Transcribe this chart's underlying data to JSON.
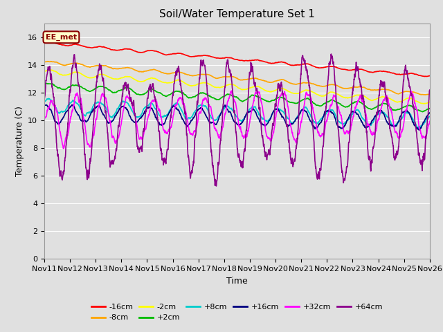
{
  "title": "Soil/Water Temperature Set 1",
  "xlabel": "Time",
  "ylabel": "Temperature (C)",
  "ylim": [
    0,
    17
  ],
  "yticks": [
    0,
    2,
    4,
    6,
    8,
    10,
    12,
    14,
    16
  ],
  "x_labels": [
    "Nov 11",
    "Nov 12",
    "Nov 13",
    "Nov 14",
    "Nov 15",
    "Nov 16",
    "Nov 17",
    "Nov 18",
    "Nov 19",
    "Nov 20",
    "Nov 21",
    "Nov 22",
    "Nov 23",
    "Nov 24",
    "Nov 25",
    "Nov 26"
  ],
  "annotation_text": "EE_met",
  "annotation_color": "#8B0000",
  "annotation_bg": "#FFFFCC",
  "series": {
    "-16cm": {
      "color": "#FF0000",
      "lw": 1.2
    },
    "-8cm": {
      "color": "#FFA500",
      "lw": 1.2
    },
    "-2cm": {
      "color": "#FFFF00",
      "lw": 1.2
    },
    "+2cm": {
      "color": "#00BB00",
      "lw": 1.2
    },
    "+8cm": {
      "color": "#00CCCC",
      "lw": 1.2
    },
    "+16cm": {
      "color": "#000080",
      "lw": 1.2
    },
    "+32cm": {
      "color": "#FF00FF",
      "lw": 1.2
    },
    "+64cm": {
      "color": "#8B008B",
      "lw": 1.2
    }
  },
  "bg_color": "#E0E0E0",
  "plot_bg": "#E0E0E0",
  "grid_color": "#FFFFFF",
  "title_fontsize": 11,
  "tick_fontsize": 8,
  "label_fontsize": 9
}
